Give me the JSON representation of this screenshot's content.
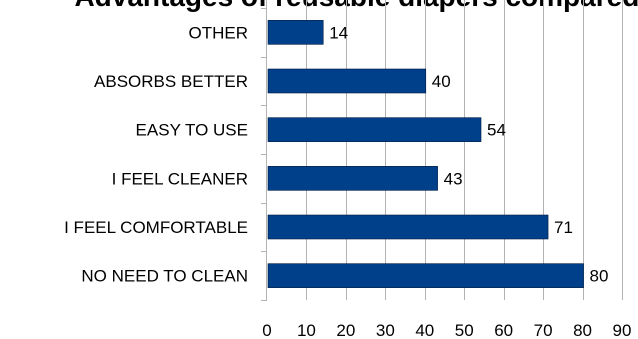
{
  "chart_data": {
    "type": "bar",
    "orientation": "horizontal",
    "title": "Advantages of reusable diapers compared to disposable",
    "categories": [
      "OTHER",
      "ABSORBS BETTER",
      "EASY TO USE",
      "I FEEL CLEANER",
      "I FEEL COMFORTABLE",
      "NO NEED TO CLEAN"
    ],
    "values": [
      14,
      40,
      54,
      43,
      71,
      80
    ],
    "xlim": [
      0,
      90
    ],
    "xticks": [
      0,
      10,
      20,
      30,
      40,
      50,
      60,
      70,
      80,
      90
    ],
    "xlabel": "",
    "ylabel": "",
    "grid": true,
    "legend": "none",
    "bar_color": "#003f8a",
    "grid_color": "#b3b3b3"
  }
}
